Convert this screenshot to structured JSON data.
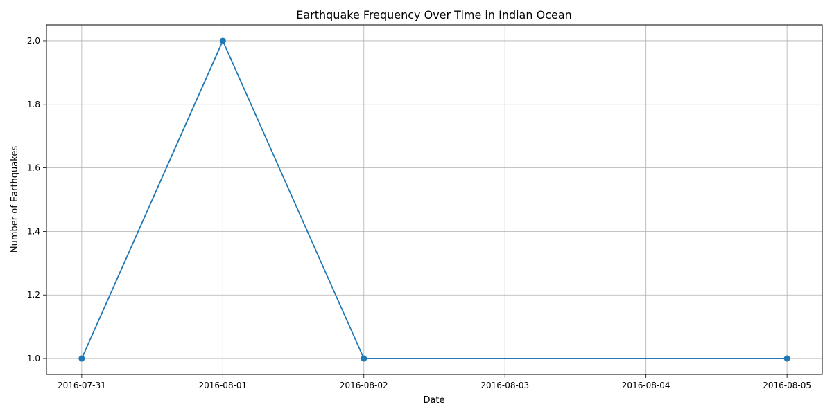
{
  "chart_data": {
    "type": "line",
    "title": "Earthquake Frequency Over Time in Indian Ocean",
    "xlabel": "Date",
    "ylabel": "Number of Earthquakes",
    "x_ticks": [
      "2016-07-31",
      "2016-08-01",
      "2016-08-02",
      "2016-08-03",
      "2016-08-04",
      "2016-08-05"
    ],
    "y_ticks": [
      "1.0",
      "1.2",
      "1.4",
      "1.6",
      "1.8",
      "2.0"
    ],
    "ylim": [
      0.95,
      2.05
    ],
    "xlim": [
      "2016-07-30",
      "2016-08-05"
    ],
    "grid": true,
    "series": [
      {
        "x": [
          "2016-07-31",
          "2016-08-01",
          "2016-08-02",
          "2016-08-05"
        ],
        "values": [
          1,
          2,
          1,
          1
        ],
        "color": "#1f77b4",
        "marker": "circle"
      }
    ]
  }
}
